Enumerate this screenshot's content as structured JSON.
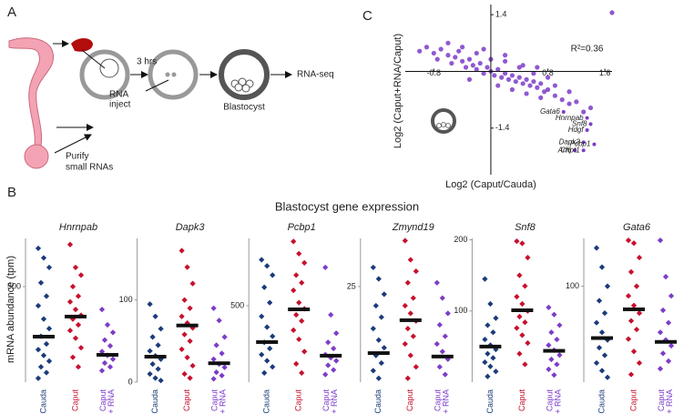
{
  "panels": {
    "a": "A",
    "b": "B",
    "c": "C"
  },
  "diagram": {
    "time": "3 hrs",
    "inject": [
      "RNA",
      "inject"
    ],
    "purify": [
      "Purify",
      "small RNAs"
    ],
    "embryo": "Blastocyst",
    "readout": "RNA-seq"
  },
  "panel_b": {
    "title": "Blastocyst gene expression",
    "y_label": "mRNA abundance (tpm)"
  },
  "chart_data": [
    {
      "type": "scatter",
      "x_label": "Log2 (Caput/Cauda)",
      "y_label": "Log2 (Caput+RNA/Caput)",
      "annotation": "R²=0.36",
      "xlim": [
        -1.2,
        1.7
      ],
      "ylim": [
        -2.55,
        1.65
      ],
      "xticks": [
        -0.8,
        0.8,
        1.6
      ],
      "yticks": [
        1.4,
        -1.4
      ],
      "color": "#7d3cc8",
      "x": [
        -1.0,
        -0.9,
        -0.8,
        -0.75,
        -0.7,
        -0.6,
        -0.55,
        -0.5,
        -0.45,
        -0.4,
        -0.35,
        -0.3,
        -0.25,
        -0.2,
        -0.15,
        -0.1,
        -0.05,
        0,
        0.05,
        0.1,
        0.15,
        0.2,
        0.25,
        0.3,
        0.35,
        0.4,
        0.45,
        0.5,
        0.55,
        0.6,
        0.65,
        0.7,
        0.75,
        0.8,
        0.9,
        1.0,
        1.1,
        1.2,
        1.3,
        -0.6,
        -0.4,
        -0.2,
        0,
        0.2,
        0.4,
        0.6,
        0.8,
        -0.3,
        0.1,
        0.3,
        0.5,
        0.7,
        0.9,
        1.1,
        1.4,
        -0.1,
        0.2,
        0.45,
        0.65,
        1.7
      ],
      "y": [
        0.5,
        0.6,
        0.45,
        0.3,
        0.55,
        0.4,
        0.2,
        0.35,
        0.5,
        0.25,
        0.1,
        0.3,
        0.15,
        0.05,
        0.2,
        -0.05,
        0.1,
        0,
        -0.1,
        0.05,
        -0.15,
        -0.05,
        -0.2,
        -0.1,
        -0.25,
        -0.15,
        -0.3,
        -0.2,
        -0.35,
        -0.25,
        -0.4,
        -0.3,
        -0.5,
        -0.45,
        -0.6,
        -0.7,
        -0.8,
        -0.75,
        -1.0,
        0.7,
        0.6,
        0.45,
        0.3,
        0.25,
        0.1,
        -0.05,
        -0.15,
        -0.2,
        -0.35,
        -0.45,
        -0.55,
        -0.65,
        -0.35,
        -0.5,
        -0.9,
        0.55,
        0.4,
        0.15,
        0.1,
        1.45
      ],
      "genes": {
        "names": [
          "Gata6",
          "Hnrnpab",
          "Snf8",
          "Hdgf",
          "Dapk3",
          "Pcbp1",
          "Arf6",
          "Chpt1"
        ],
        "x": [
          1.02,
          1.35,
          1.4,
          1.35,
          1.3,
          1.45,
          1.18,
          1.3
        ],
        "y": [
          -1.0,
          -1.15,
          -1.3,
          -1.45,
          -1.75,
          -1.8,
          -1.95,
          -1.95
        ]
      }
    },
    {
      "type": "strip",
      "title": "Hnrnpab",
      "ylim": [
        0,
        752
      ],
      "yticks": [
        500
      ],
      "series": [
        {
          "name": [
            "Cauda"
          ],
          "color": "#1b3b7a",
          "median": 238,
          "values": [
            700,
            650,
            600,
            520,
            450,
            400,
            330,
            280,
            240,
            200,
            170,
            140,
            110,
            80,
            50,
            20
          ]
        },
        {
          "name": [
            "Caput"
          ],
          "color": "#c8102e",
          "median": 343,
          "values": [
            720,
            600,
            560,
            500,
            450,
            420,
            380,
            350,
            330,
            300,
            270,
            230,
            180,
            130,
            80
          ]
        },
        {
          "name": [
            "Caput",
            "+ RNA"
          ],
          "color": "#7d3cc8",
          "median": 143,
          "values": [
            380,
            300,
            260,
            220,
            190,
            160,
            140,
            120,
            100,
            80,
            60
          ]
        }
      ]
    },
    {
      "type": "strip",
      "title": "Dapk3",
      "ylim": [
        0,
        175
      ],
      "yticks": [
        0,
        100
      ],
      "series": [
        {
          "name": [
            "Cauda"
          ],
          "color": "#1b3b7a",
          "median": 31,
          "values": [
            95,
            80,
            65,
            55,
            45,
            38,
            32,
            28,
            22,
            16,
            10,
            5,
            2
          ]
        },
        {
          "name": [
            "Caput"
          ],
          "color": "#c8102e",
          "median": 69,
          "values": [
            160,
            140,
            120,
            100,
            90,
            80,
            72,
            66,
            58,
            50,
            40,
            30,
            20,
            10,
            5
          ]
        },
        {
          "name": [
            "Caput",
            "+ RNA"
          ],
          "color": "#7d3cc8",
          "median": 23,
          "values": [
            90,
            75,
            55,
            45,
            35,
            28,
            22,
            18,
            12,
            8,
            4
          ]
        }
      ]
    },
    {
      "type": "strip",
      "title": "Pcbp1",
      "ylim": [
        0,
        940
      ],
      "yticks": [
        500
      ],
      "series": [
        {
          "name": [
            "Cauda"
          ],
          "color": "#1b3b7a",
          "median": 262,
          "values": [
            800,
            760,
            700,
            620,
            520,
            430,
            360,
            300,
            260,
            220,
            180,
            140,
            100,
            60
          ]
        },
        {
          "name": [
            "Caput"
          ],
          "color": "#c8102e",
          "median": 476,
          "values": [
            920,
            840,
            780,
            700,
            650,
            600,
            520,
            480,
            440,
            400,
            340,
            280,
            200,
            120,
            60
          ]
        },
        {
          "name": [
            "Caput",
            "+ RNA"
          ],
          "color": "#7d3cc8",
          "median": 173,
          "values": [
            750,
            440,
            320,
            260,
            220,
            180,
            160,
            140,
            110,
            80,
            50
          ]
        }
      ]
    },
    {
      "type": "strip",
      "title": "Zmynd19",
      "ylim": [
        0,
        37.6
      ],
      "yticks": [
        25
      ],
      "series": [
        {
          "name": [
            "Cauda"
          ],
          "color": "#1b3b7a",
          "median": 7.6,
          "values": [
            30,
            27,
            23,
            20,
            17,
            14,
            11,
            9,
            7,
            5,
            3,
            1
          ]
        },
        {
          "name": [
            "Caput"
          ],
          "color": "#c8102e",
          "median": 16.2,
          "values": [
            37,
            32,
            29,
            26,
            22,
            20,
            18,
            16,
            14,
            12,
            10,
            7,
            4,
            1
          ]
        },
        {
          "name": [
            "Caput",
            "+ RNA"
          ],
          "color": "#7d3cc8",
          "median": 6.7,
          "values": [
            26,
            22,
            18,
            15,
            12,
            10,
            8,
            6,
            4,
            2
          ]
        }
      ]
    },
    {
      "type": "strip",
      "title": "Snf8",
      "ylim": [
        0,
        202
      ],
      "yticks": [
        100,
        200
      ],
      "series": [
        {
          "name": [
            "Cauda"
          ],
          "color": "#1b3b7a",
          "median": 50,
          "values": [
            145,
            110,
            90,
            80,
            70,
            60,
            52,
            46,
            40,
            34,
            28,
            22,
            15,
            8
          ]
        },
        {
          "name": [
            "Caput"
          ],
          "color": "#c8102e",
          "median": 101,
          "values": [
            198,
            195,
            175,
            150,
            135,
            120,
            110,
            100,
            92,
            84,
            76,
            66,
            55,
            40,
            25
          ]
        },
        {
          "name": [
            "Caput",
            "+ RNA"
          ],
          "color": "#7d3cc8",
          "median": 44,
          "values": [
            105,
            95,
            80,
            70,
            60,
            52,
            45,
            38,
            32,
            25,
            18,
            10
          ]
        }
      ]
    },
    {
      "type": "strip",
      "title": "Gata6",
      "ylim": [
        0,
        150
      ],
      "yticks": [
        100
      ],
      "series": [
        {
          "name": [
            "Cauda"
          ],
          "color": "#1b3b7a",
          "median": 46,
          "values": [
            140,
            120,
            100,
            85,
            72,
            62,
            52,
            44,
            36,
            28,
            20,
            12,
            5
          ]
        },
        {
          "name": [
            "Caput"
          ],
          "color": "#c8102e",
          "median": 76,
          "values": [
            148,
            145,
            130,
            115,
            100,
            90,
            80,
            72,
            64,
            55,
            45,
            32,
            20,
            8
          ]
        },
        {
          "name": [
            "Caput",
            "+ RNA"
          ],
          "color": "#7d3cc8",
          "median": 42,
          "values": [
            148,
            110,
            90,
            75,
            62,
            52,
            44,
            38,
            30,
            22,
            14
          ]
        }
      ]
    }
  ]
}
